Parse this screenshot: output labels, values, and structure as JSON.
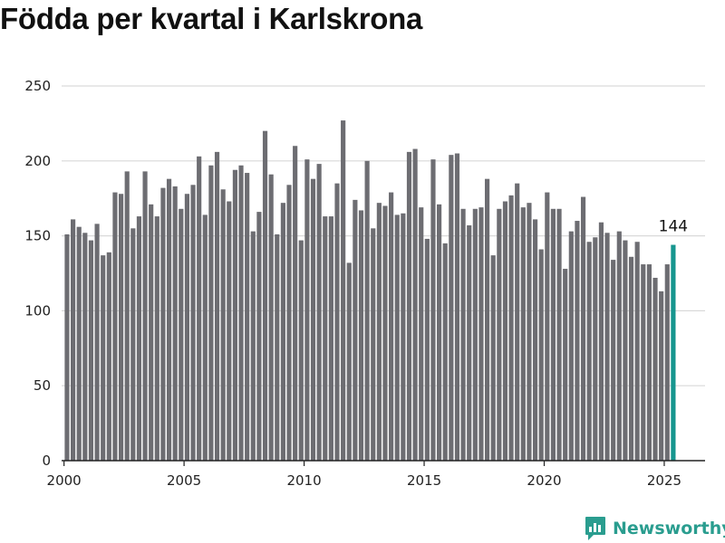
{
  "title": "Födda per kvartal i Karlskrona",
  "branding": {
    "name": "Newsworthy",
    "color": "#2a9d8f"
  },
  "colors": {
    "bar": "#6d6d72",
    "highlight": "#17968f",
    "grid": "#d9d9d9",
    "axis": "#222222"
  },
  "chart_data": {
    "type": "bar",
    "title": "Födda per kvartal i Karlskrona",
    "xlabel": "",
    "ylabel": "",
    "ylim": [
      0,
      250
    ],
    "xlim": [
      1999.9,
      2026.7
    ],
    "yticks": [
      0,
      50,
      100,
      150,
      200,
      250
    ],
    "xticks": [
      2000,
      2005,
      2010,
      2015,
      2020,
      2025
    ],
    "grid": true,
    "start": {
      "year": 2000,
      "quarter": 1
    },
    "values": [
      151,
      161,
      156,
      152,
      147,
      158,
      137,
      139,
      179,
      178,
      193,
      155,
      163,
      193,
      171,
      163,
      182,
      188,
      183,
      168,
      178,
      184,
      203,
      164,
      197,
      206,
      181,
      173,
      194,
      197,
      192,
      153,
      166,
      220,
      191,
      151,
      172,
      184,
      210,
      147,
      201,
      188,
      198,
      163,
      163,
      185,
      227,
      132,
      174,
      167,
      200,
      155,
      172,
      170,
      179,
      164,
      165,
      206,
      208,
      169,
      148,
      201,
      171,
      145,
      204,
      205,
      168,
      157,
      168,
      169,
      188,
      137,
      168,
      173,
      177,
      185,
      169,
      172,
      161,
      141,
      179,
      168,
      168,
      128,
      153,
      160,
      176,
      146,
      149,
      159,
      152,
      134,
      153,
      147,
      136,
      146,
      131,
      131,
      122,
      113,
      131,
      144
    ],
    "highlight_last": true,
    "last_label": "144"
  }
}
